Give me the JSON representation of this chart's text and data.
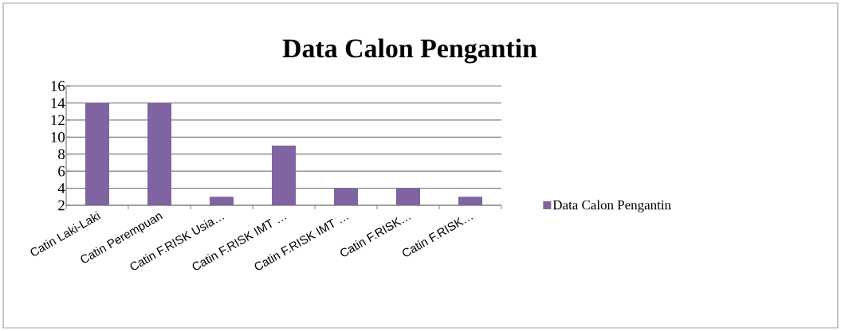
{
  "chart_data": {
    "type": "bar",
    "title": "Data Calon Pengantin",
    "categories": [
      "Catin Laki-Laki",
      "Catin Perempuan",
      "Catin F.RISK Usia…",
      "Catin F.RISK IMT …",
      "Catin F.RISK IMT …",
      "Catin F.RISK…",
      "Catin F.RISK…"
    ],
    "series": [
      {
        "name": "Data Calon Pengantin",
        "color": "#8064a2",
        "values": [
          14,
          14,
          3,
          9,
          4,
          4,
          3
        ]
      }
    ],
    "ylim": [
      2,
      16
    ],
    "yticks": [
      2,
      4,
      6,
      8,
      10,
      12,
      14,
      16
    ],
    "grid": "y",
    "legend": "right"
  }
}
